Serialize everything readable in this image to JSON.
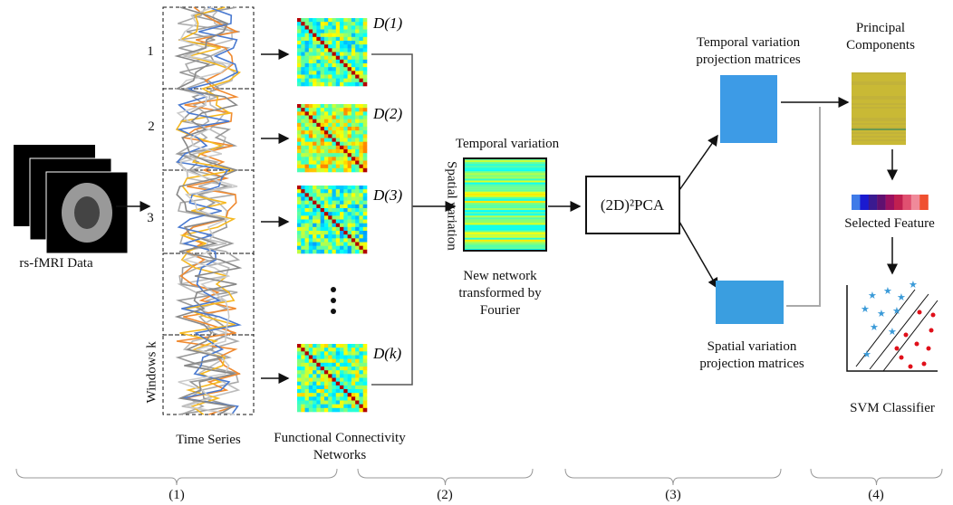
{
  "input": {
    "label": "rs-fMRI Data"
  },
  "windows": {
    "labels": [
      "1",
      "2",
      "3",
      "Windows k"
    ],
    "caption": "Time Series"
  },
  "networks": {
    "labels": [
      "D(1)",
      "D(2)",
      "D(3)",
      "D(k)"
    ],
    "caption": "Functional Connectivity Networks"
  },
  "fourier": {
    "top": "Temporal variation",
    "side": "Spatial variation",
    "caption": "New network transformed by Fourier"
  },
  "pca": {
    "label": "(2D)²PCA"
  },
  "projections": {
    "temporal": "Temporal variation projection matrices",
    "spatial": "Spatial variation projection matrices"
  },
  "classifier": {
    "components": "Principal Components",
    "feature": "Selected Feature",
    "svm": "SVM Classifier"
  },
  "stages": [
    "(1)",
    "(2)",
    "(3)",
    "(4)"
  ]
}
